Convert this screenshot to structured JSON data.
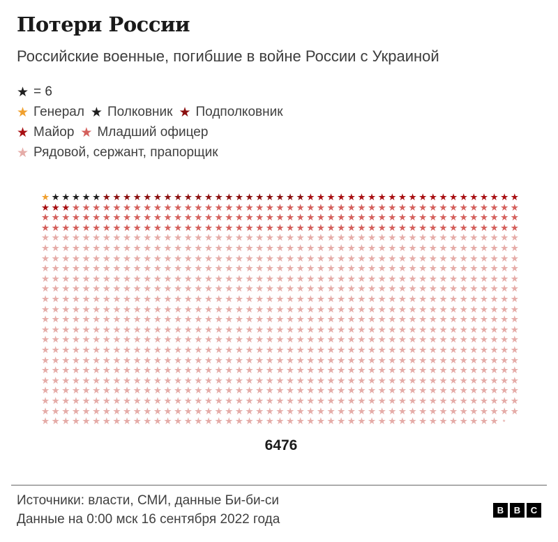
{
  "header": {
    "title": "Потери России",
    "subtitle": "Российские военные, погибшие в войне России с Украиной"
  },
  "legend": {
    "key_star_color": "#1f1f1f",
    "unit_label": "= 6",
    "groups": [
      [
        0,
        1,
        2
      ],
      [
        3,
        4
      ],
      [
        5
      ]
    ]
  },
  "chart_data": {
    "type": "pictogram",
    "title": "Потери России",
    "subtitle": "Российские военные, погибшие в войне России с Украиной",
    "unit_per_star": 6,
    "columns": 47,
    "total": 6476,
    "total_label": "6476",
    "star_symbol": "★",
    "categories": [
      {
        "label": "Генерал",
        "color": "#f0a02e",
        "stars": 1,
        "value": 6
      },
      {
        "label": "Полковник",
        "color": "#1f1f1f",
        "stars": 5,
        "value": 30
      },
      {
        "label": "Подполковник",
        "color": "#8b1010",
        "stars": 20,
        "value": 120
      },
      {
        "label": "Майор",
        "color": "#a80f12",
        "stars": 24,
        "value": 144
      },
      {
        "label": "Младший офицер",
        "color": "#d4605c",
        "stars": 138,
        "value": 828
      },
      {
        "label": "Рядовой, сержант, прапорщик",
        "color": "#e5aca8",
        "stars": 891,
        "partial": 0.33,
        "value": 5348
      }
    ]
  },
  "footer": {
    "sources": "Источники: власти, СМИ, данные Би-би-си",
    "updated": "Данные на 0:00 мск 16 сентября 2022 года",
    "logo_letters": [
      "B",
      "B",
      "C"
    ]
  }
}
